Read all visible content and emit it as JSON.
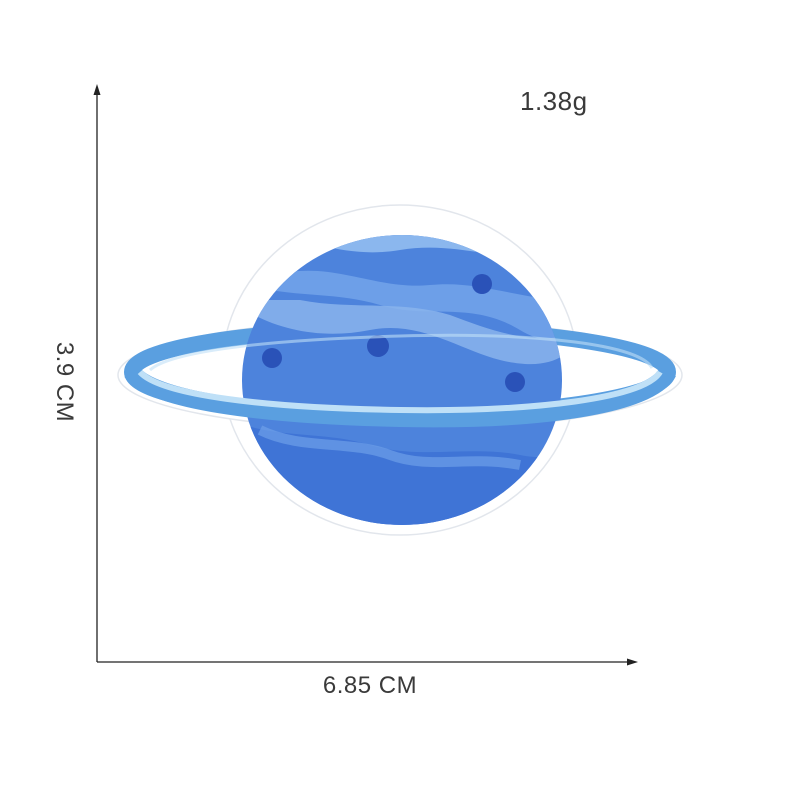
{
  "product": {
    "weight": "1.38g",
    "width_label": "6.85 CM",
    "height_label": "3.9 CM",
    "subject": "embroidered-planet-patch",
    "colors": {
      "border": "#ffffff",
      "planet_dark": "#3f74d6",
      "planet_mid": "#5f93e6",
      "planet_light": "#8bb7ee",
      "ring_outer": "#5a9fe0",
      "ring_inner": "#bfe0f7",
      "crater": "#2a52b8",
      "dimension_line": "#222222"
    }
  }
}
